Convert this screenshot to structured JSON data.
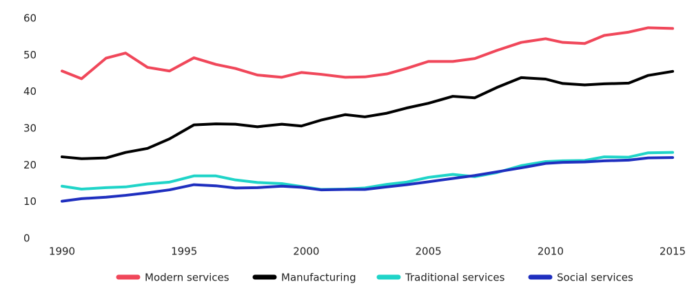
{
  "chart_data": {
    "type": "line",
    "x": [
      1990,
      1990.8,
      1991.8,
      1992.6,
      1993.5,
      1994.4,
      1995.4,
      1996.3,
      1997.1,
      1998.0,
      1999.0,
      1999.8,
      2000.6,
      2001.6,
      2002.4,
      2003.3,
      2004.1,
      2005.0,
      2006.0,
      2006.9,
      2007.8,
      2008.8,
      2009.8,
      2010.5,
      2011.4,
      2012.2,
      2013.2,
      2014.0,
      2015
    ],
    "series": [
      {
        "name": "Modern services",
        "color": "#f0475a",
        "values": [
          45.7,
          43.6,
          49.2,
          50.6,
          46.7,
          45.7,
          49.3,
          47.5,
          46.4,
          44.6,
          44.0,
          45.3,
          44.8,
          44.0,
          44.1,
          44.9,
          46.4,
          48.3,
          48.3,
          49.1,
          51.3,
          53.5,
          54.5,
          53.5,
          53.2,
          55.4,
          56.3,
          57.5,
          57.3
        ]
      },
      {
        "name": "Manufacturing",
        "color": "#000000",
        "values": [
          22.3,
          21.8,
          22.0,
          23.5,
          24.6,
          27.2,
          31.0,
          31.3,
          31.2,
          30.5,
          31.2,
          30.7,
          32.3,
          33.8,
          33.2,
          34.2,
          35.6,
          36.9,
          38.8,
          38.4,
          41.2,
          43.9,
          43.5,
          42.3,
          41.9,
          42.2,
          42.4,
          44.5,
          45.6
        ]
      },
      {
        "name": "Traditional services",
        "color": "#1fd4c8",
        "values": [
          14.3,
          13.5,
          13.9,
          14.1,
          14.9,
          15.4,
          17.1,
          17.1,
          16.0,
          15.3,
          15.0,
          14.2,
          13.4,
          13.5,
          13.8,
          14.8,
          15.4,
          16.7,
          17.5,
          16.9,
          18.0,
          19.9,
          21.0,
          21.2,
          21.3,
          22.3,
          22.2,
          23.4,
          23.5
        ]
      },
      {
        "name": "Social services",
        "color": "#1f2fbf",
        "values": [
          10.2,
          10.9,
          11.3,
          11.8,
          12.5,
          13.3,
          14.7,
          14.4,
          13.8,
          13.9,
          14.3,
          14.0,
          13.3,
          13.4,
          13.4,
          14.1,
          14.7,
          15.5,
          16.4,
          17.2,
          18.2,
          19.3,
          20.5,
          20.8,
          20.9,
          21.2,
          21.4,
          22.0,
          22.1
        ]
      }
    ],
    "xlim": [
      1990,
      2015
    ],
    "xticks": [
      1990,
      1995,
      2000,
      2005,
      2010,
      2015
    ],
    "ylim": [
      0,
      60
    ],
    "yticks": [
      0,
      10,
      20,
      30,
      40,
      50,
      60
    ],
    "grid": false,
    "legend": "bottom"
  }
}
